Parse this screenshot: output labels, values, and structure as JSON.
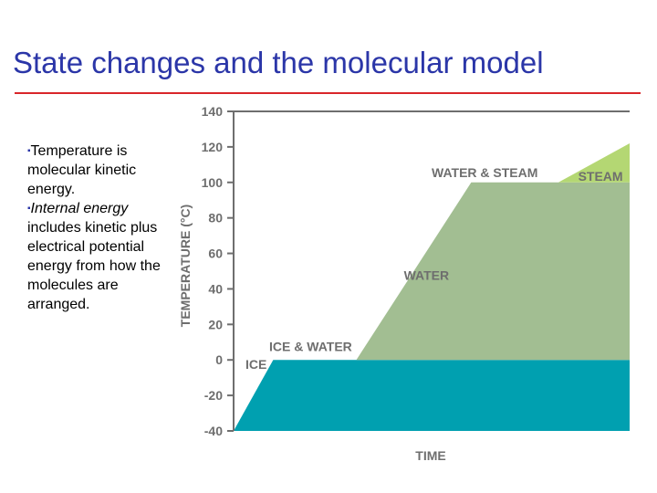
{
  "slide": {
    "title": "State changes and the molecular model",
    "bullets": [
      {
        "mark": "▪",
        "em": "",
        "text": "Temperature is molecular kinetic energy."
      },
      {
        "mark": "▪",
        "em": "Internal energy",
        "text": " includes kinetic plus electrical potential energy from how the molecules are arranged."
      }
    ]
  },
  "colors": {
    "title": "#2b36a8",
    "rule": "#d9262a",
    "ice_region": "#00a0b0",
    "water_region": "#a2be92",
    "steam_region": "#b4d773",
    "axis": "#6e6e6e",
    "label": "#6e6e6e"
  },
  "chart_data": {
    "type": "area",
    "xlabel": "TIME",
    "ylabel": "TEMPERATURE (°C)",
    "ylim": [
      -40,
      140
    ],
    "yticks": [
      140,
      120,
      100,
      80,
      60,
      40,
      20,
      0,
      -20,
      -40
    ],
    "xlim": [
      0,
      100
    ],
    "x": [
      0,
      10,
      31,
      60,
      82,
      100
    ],
    "y": [
      -40,
      0,
      0,
      100,
      100,
      122
    ],
    "regions": [
      {
        "name": "ICE",
        "color_key": "ice_region",
        "range": [
          -40,
          0
        ]
      },
      {
        "name": "WATER",
        "color_key": "water_region",
        "range": [
          0,
          100
        ]
      },
      {
        "name": "STEAM",
        "color_key": "steam_region",
        "range": [
          100,
          140
        ]
      }
    ],
    "annotations": [
      {
        "id": "ice",
        "text": "ICE",
        "x": 3,
        "y": -5
      },
      {
        "id": "ice-water",
        "text": "ICE & WATER",
        "x": 9,
        "y": 5
      },
      {
        "id": "water",
        "text": "WATER",
        "x": 43,
        "y": 45
      },
      {
        "id": "water-steam",
        "text": "WATER & STEAM",
        "x": 50,
        "y": 103
      },
      {
        "id": "steam",
        "text": "STEAM",
        "x": 87,
        "y": 101
      }
    ]
  }
}
